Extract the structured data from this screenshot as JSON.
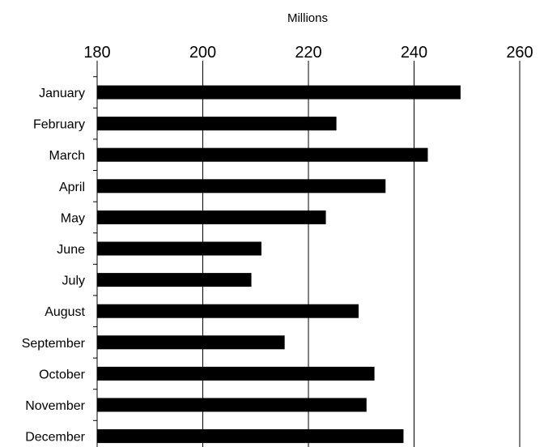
{
  "chart_data": {
    "type": "bar",
    "orientation": "horizontal",
    "title": "Millions",
    "categories": [
      "January",
      "February",
      "March",
      "April",
      "May",
      "June",
      "July",
      "August",
      "September",
      "October",
      "November",
      "December"
    ],
    "values": [
      248.8,
      225.3,
      242.6,
      234.6,
      223.3,
      211.1,
      209.2,
      229.5,
      215.5,
      232.5,
      231.0,
      238.0
    ],
    "xlim": [
      180,
      260
    ],
    "x_ticks": [
      180,
      200,
      220,
      240,
      260
    ],
    "x_tick_labels": [
      "180",
      "200",
      "220",
      "240",
      "260"
    ],
    "x_axis_position": "top",
    "grid": true,
    "bar_color": "#000000"
  }
}
